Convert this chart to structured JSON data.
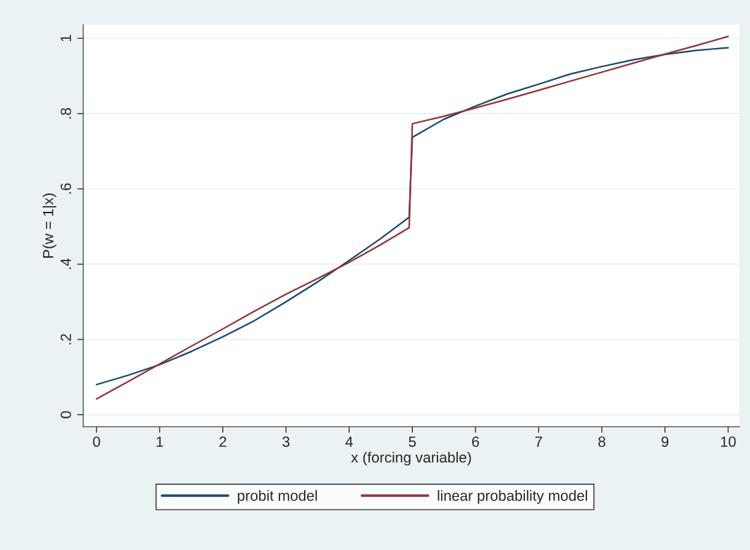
{
  "chart_data": {
    "type": "line",
    "xlabel": "x (forcing variable)",
    "ylabel": "P(w = 1|x)",
    "xlim": [
      -0.21,
      10.18
    ],
    "ylim": [
      -0.032,
      1.036
    ],
    "xticks": [
      0,
      1,
      2,
      3,
      4,
      5,
      6,
      7,
      8,
      9,
      10
    ],
    "yticks": [
      0,
      {
        "value": 0.2,
        "label": ".2"
      },
      {
        "value": 0.4,
        "label": ".4"
      },
      {
        "value": 0.6,
        "label": ".6"
      },
      {
        "value": 0.8,
        "label": ".8"
      },
      1
    ],
    "grid": "y",
    "legend": "bottom",
    "x": [
      0,
      0.5,
      1,
      1.5,
      2,
      2.5,
      3,
      3.5,
      4,
      4.5,
      4.95,
      5,
      5.5,
      6,
      6.5,
      7,
      7.5,
      8,
      8.5,
      9,
      9.5,
      10
    ],
    "series": [
      {
        "name": "probit model",
        "color": "#1a476f",
        "values": [
          0.08,
          0.105,
          0.133,
          0.168,
          0.207,
          0.25,
          0.3,
          0.353,
          0.41,
          0.468,
          0.525,
          0.737,
          0.785,
          0.82,
          0.852,
          0.878,
          0.905,
          0.925,
          0.943,
          0.957,
          0.968,
          0.975
        ]
      },
      {
        "name": "linear probability model",
        "color": "#90353b",
        "values": [
          0.042,
          0.088,
          0.135,
          0.182,
          0.228,
          0.275,
          0.32,
          0.362,
          0.405,
          0.452,
          0.497,
          0.773,
          0.793,
          0.815,
          0.838,
          0.862,
          0.886,
          0.91,
          0.934,
          0.958,
          0.981,
          1.005
        ]
      }
    ]
  }
}
